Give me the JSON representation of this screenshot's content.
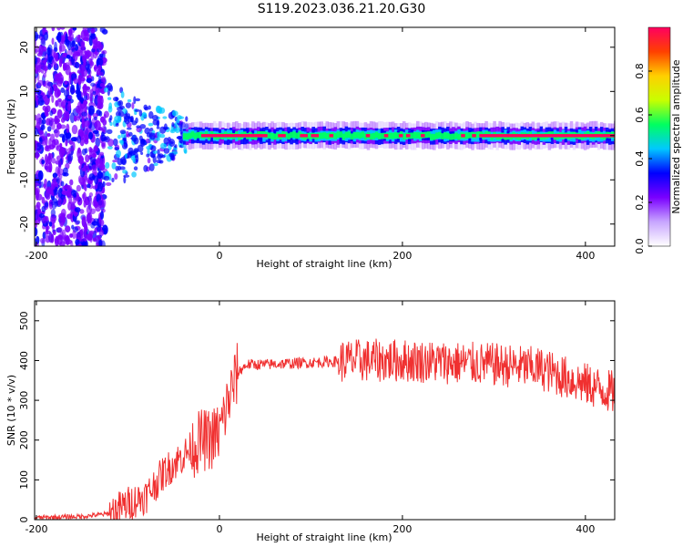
{
  "title": "S119.2023.036.21.20.G30",
  "chart_data": [
    {
      "type": "heatmap",
      "xlabel": "Height of straight line (km)",
      "ylabel": "Frequency (Hz)",
      "xlim": [
        -202,
        432
      ],
      "ylim": [
        -25,
        24.5
      ],
      "xticks": [
        -200,
        0,
        200,
        400
      ],
      "yticks": [
        -20,
        -10,
        0,
        10,
        20
      ],
      "colorbar": {
        "label": "Normalized spectral amplitude",
        "range": [
          0,
          1
        ],
        "ticks": [
          0.0,
          0.2,
          0.4,
          0.6,
          0.8
        ],
        "tick_labels": [
          "0.0",
          "0.2",
          "0.4",
          "0.6",
          "0.8"
        ],
        "colormap": [
          "#ffffff",
          "#c8a6ff",
          "#7a00ff",
          "#0000ff",
          "#00c8ff",
          "#00ff60",
          "#c8ff00",
          "#ffd000",
          "#ff4000",
          "#ff0060"
        ]
      },
      "noise_region_x": [
        -202,
        -125
      ],
      "signal_centre_hz": 0
    },
    {
      "type": "line",
      "xlabel": "Height of straight line (km)",
      "ylabel": "SNR (10 * v/v)",
      "xlim": [
        -202,
        432
      ],
      "ylim": [
        0,
        550
      ],
      "xticks": [
        -200,
        0,
        200,
        400
      ],
      "yticks": [
        0,
        100,
        200,
        300,
        400,
        500
      ],
      "series": [
        {
          "color": "#f03030",
          "x": [
            -200,
            -150,
            -120,
            -100,
            -80,
            -60,
            -40,
            -30,
            -20,
            -10,
            0,
            10,
            20,
            30,
            50,
            100,
            150,
            200,
            250,
            300,
            350,
            400,
            430
          ],
          "y": [
            5,
            8,
            15,
            40,
            60,
            120,
            160,
            180,
            200,
            200,
            220,
            300,
            370,
            390,
            390,
            395,
            400,
            400,
            395,
            390,
            380,
            340,
            320
          ]
        }
      ]
    }
  ]
}
